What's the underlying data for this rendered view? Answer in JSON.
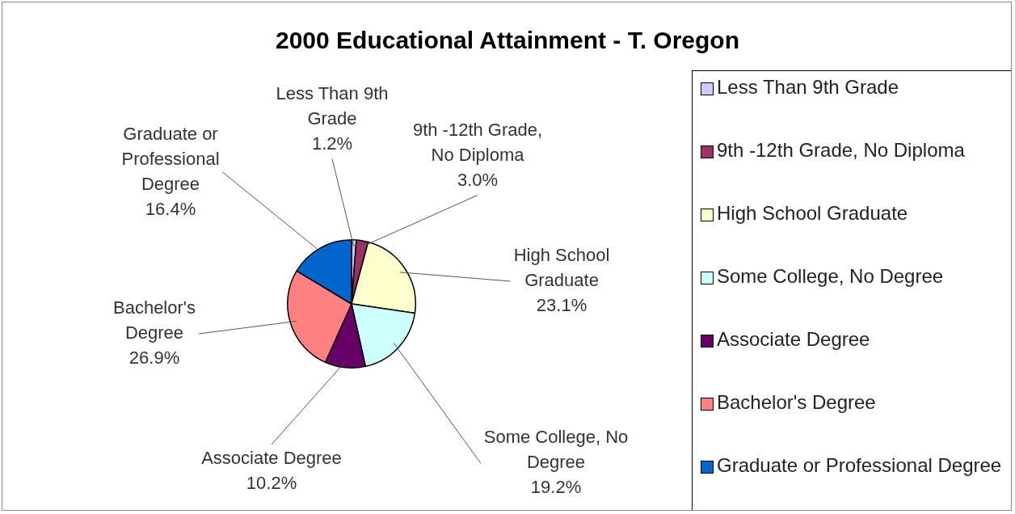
{
  "chart_data": {
    "type": "pie",
    "title": "2000 Educational Attainment - T. Oregon",
    "categories": [
      "Less Than 9th Grade",
      "9th -12th Grade, No Diploma",
      "High School Graduate",
      "Some College, No Degree",
      "Associate Degree",
      "Bachelor's Degree",
      "Graduate or Professional Degree"
    ],
    "values": [
      1.2,
      3.0,
      23.1,
      19.2,
      10.2,
      26.9,
      16.4
    ],
    "value_labels": [
      "1.2%",
      "3.0%",
      "23.1%",
      "19.2%",
      "10.2%",
      "26.9%",
      "16.4%"
    ],
    "colors": [
      "#ccccff",
      "#993366",
      "#ffffcc",
      "#ccffff",
      "#660066",
      "#ff8080",
      "#0066cc"
    ],
    "legend": "right"
  }
}
